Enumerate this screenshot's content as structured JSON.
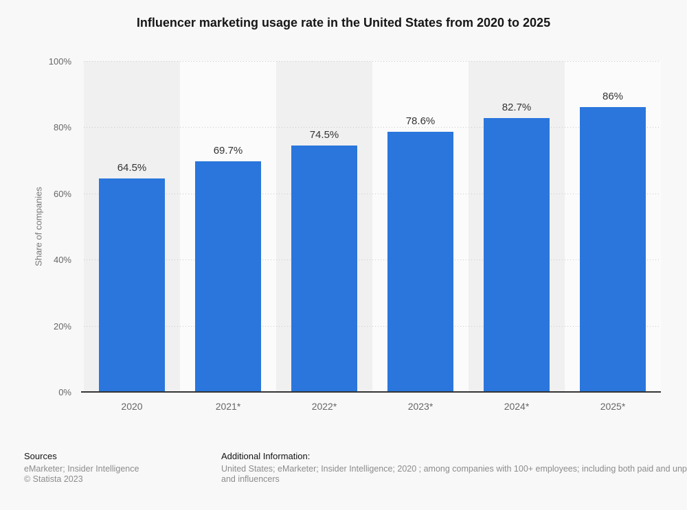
{
  "title": "Influencer marketing usage rate in the United States from 2020 to 2025",
  "chart_data": {
    "type": "bar",
    "categories": [
      "2020",
      "2021*",
      "2022*",
      "2023*",
      "2024*",
      "2025*"
    ],
    "values": [
      64.5,
      69.7,
      74.5,
      78.6,
      82.7,
      86
    ],
    "value_labels": [
      "64.5%",
      "69.7%",
      "74.5%",
      "78.6%",
      "82.7%",
      "86%"
    ],
    "title": "Influencer marketing usage rate in the United States from 2020 to 2025",
    "xlabel": "",
    "ylabel": "Share of companies",
    "ylim": [
      0,
      100
    ],
    "yticks": [
      "0%",
      "20%",
      "40%",
      "60%",
      "80%",
      "100%"
    ],
    "grid": "horizontal dotted",
    "legend": "none",
    "bar_color": "#2a76dc"
  },
  "footer": {
    "sources_label": "Sources",
    "sources_text": "eMarketer; Insider Intelligence",
    "copyright": "© Statista 2023",
    "additional_label": "Additional Information:",
    "additional_line1": "United States; eMarketer; Insider Intelligence; 2020 ; among companies with 100+ employees; including both paid and unp",
    "additional_line2": "and influencers"
  }
}
